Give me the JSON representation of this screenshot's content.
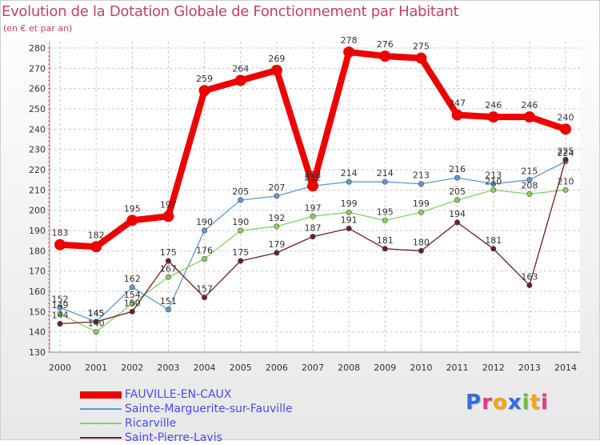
{
  "title": "Evolution de la Dotation Globale de Fonctionnement par Habitant",
  "subtitle": "(en € et par an)",
  "logo": {
    "letters": [
      {
        "ch": "P",
        "color": "#2e6fd8"
      },
      {
        "ch": "r",
        "color": "#e03c8a"
      },
      {
        "ch": "o",
        "color": "#f2a51a"
      },
      {
        "ch": "x",
        "color": "#2e6fd8"
      },
      {
        "ch": "i",
        "color": "#6bbf3a"
      },
      {
        "ch": "t",
        "color": "#f2a51a"
      },
      {
        "ch": "i",
        "color": "#e03c8a"
      }
    ]
  },
  "chart_data": {
    "type": "line",
    "x": [
      2000,
      2001,
      2002,
      2003,
      2004,
      2005,
      2006,
      2007,
      2008,
      2009,
      2010,
      2011,
      2012,
      2013,
      2014
    ],
    "ylim": [
      130,
      280
    ],
    "yticks": [
      130,
      140,
      150,
      160,
      170,
      180,
      190,
      200,
      210,
      220,
      230,
      240,
      250,
      260,
      270,
      280
    ],
    "grid": true,
    "legend_position": "bottom-left",
    "series": [
      {
        "name": "FAUVILLE-EN-CAUX",
        "color": "#ee0000",
        "emphasis": true,
        "values": [
          183,
          182,
          195,
          197,
          259,
          264,
          269,
          212,
          278,
          276,
          275,
          247,
          246,
          246,
          240
        ],
        "labels": [
          "183",
          "182",
          "195",
          "197",
          "259",
          "264",
          "269",
          "212",
          "278",
          "276",
          "275",
          "247",
          "246",
          "246",
          "240"
        ]
      },
      {
        "name": "Sainte-Marguerite-sur-Fauville",
        "color": "#5c9ad6",
        "emphasis": false,
        "values": [
          152,
          145,
          162,
          151,
          190,
          205,
          207,
          212,
          214,
          214,
          213,
          216,
          213,
          215,
          224
        ],
        "labels": [
          "152",
          "145",
          "162",
          "151",
          "190",
          "205",
          "207",
          "212",
          "214",
          "214",
          "213",
          "216",
          "213",
          "215",
          "224"
        ]
      },
      {
        "name": "Ricarville",
        "color": "#88d060",
        "emphasis": false,
        "values": [
          149,
          140,
          154,
          167,
          176,
          190,
          192,
          197,
          199,
          195,
          199,
          205,
          210,
          208,
          210
        ],
        "labels": [
          "149",
          "140",
          "154",
          "167",
          "176",
          "190",
          "192",
          "197",
          "199",
          "195",
          "199",
          "205",
          "210",
          "208",
          "210"
        ]
      },
      {
        "name": "Saint-Pierre-Lavis",
        "color": "#6b1f2a",
        "emphasis": false,
        "values": [
          144,
          145,
          150,
          175,
          157,
          175,
          179,
          187,
          191,
          181,
          180,
          194,
          181,
          163,
          225
        ],
        "labels": [
          "144",
          "145",
          "150",
          "175",
          "157",
          "175",
          "179",
          "187",
          "191",
          "181",
          "180",
          "194",
          "181",
          "163",
          "225"
        ]
      }
    ]
  }
}
